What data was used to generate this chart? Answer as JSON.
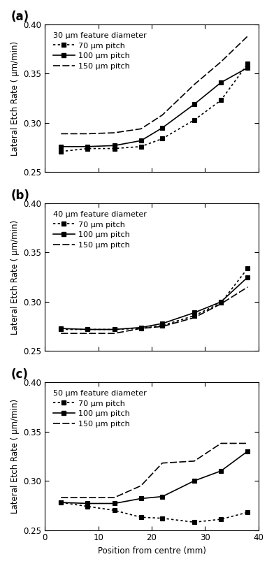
{
  "subplots": [
    {
      "label": "(a)",
      "title": "30 μm feature diameter",
      "series": [
        {
          "name": "70 μm pitch",
          "x": [
            3,
            8,
            13,
            18,
            22,
            28,
            33,
            38
          ],
          "y": [
            0.271,
            0.274,
            0.274,
            0.276,
            0.284,
            0.303,
            0.323,
            0.36
          ]
        },
        {
          "name": "100 μm pitch",
          "x": [
            3,
            8,
            13,
            18,
            22,
            28,
            33,
            38
          ],
          "y": [
            0.276,
            0.276,
            0.277,
            0.282,
            0.295,
            0.319,
            0.341,
            0.356
          ]
        },
        {
          "name": "150 μm pitch",
          "x": [
            3,
            8,
            13,
            18,
            22,
            28,
            33,
            38
          ],
          "y": [
            0.289,
            0.289,
            0.29,
            0.294,
            0.308,
            0.339,
            0.362,
            0.388
          ]
        }
      ]
    },
    {
      "label": "(b)",
      "title": "40 μm feature diameter",
      "series": [
        {
          "name": "70 μm pitch",
          "x": [
            3,
            8,
            13,
            18,
            22,
            28,
            33,
            38
          ],
          "y": [
            0.272,
            0.272,
            0.272,
            0.273,
            0.276,
            0.286,
            0.299,
            0.334
          ]
        },
        {
          "name": "100 μm pitch",
          "x": [
            3,
            8,
            13,
            18,
            22,
            28,
            33,
            38
          ],
          "y": [
            0.273,
            0.272,
            0.272,
            0.274,
            0.278,
            0.289,
            0.3,
            0.325
          ]
        },
        {
          "name": "150 μm pitch",
          "x": [
            3,
            8,
            13,
            18,
            22,
            28,
            33,
            38
          ],
          "y": [
            0.268,
            0.268,
            0.268,
            0.273,
            0.275,
            0.284,
            0.298,
            0.315
          ]
        }
      ]
    },
    {
      "label": "(c)",
      "title": "50 μm feature diameter",
      "series": [
        {
          "name": "70 μm pitch",
          "x": [
            3,
            8,
            13,
            18,
            22,
            28,
            33,
            38
          ],
          "y": [
            0.278,
            0.274,
            0.27,
            0.263,
            0.262,
            0.258,
            0.261,
            0.268
          ]
        },
        {
          "name": "100 μm pitch",
          "x": [
            3,
            8,
            13,
            18,
            22,
            28,
            33,
            38
          ],
          "y": [
            0.278,
            0.277,
            0.277,
            0.282,
            0.284,
            0.3,
            0.31,
            0.33
          ]
        },
        {
          "name": "150 μm pitch",
          "x": [
            3,
            8,
            13,
            18,
            22,
            28,
            33,
            38
          ],
          "y": [
            0.283,
            0.283,
            0.283,
            0.295,
            0.318,
            0.32,
            0.338,
            0.338
          ]
        }
      ]
    }
  ],
  "ylim": [
    0.25,
    0.4
  ],
  "xlim": [
    0,
    40
  ],
  "yticks": [
    0.25,
    0.3,
    0.35,
    0.4
  ],
  "xticks": [
    0,
    10,
    20,
    30,
    40
  ],
  "ylabel": "Lateral Etch Rate ( μm/min)",
  "xlabel": "Position from centre (mm)",
  "marker_size": 4,
  "linewidth": 1.2
}
